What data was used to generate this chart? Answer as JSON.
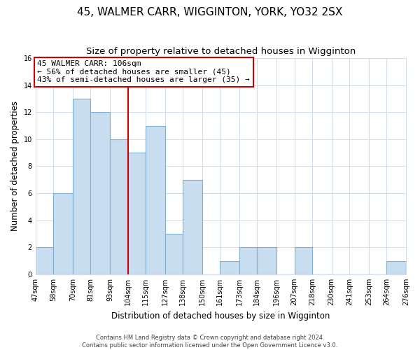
{
  "title": "45, WALMER CARR, WIGGINTON, YORK, YO32 2SX",
  "subtitle": "Size of property relative to detached houses in Wigginton",
  "xlabel": "Distribution of detached houses by size in Wigginton",
  "ylabel": "Number of detached properties",
  "bin_edges": [
    47,
    58,
    70,
    81,
    93,
    104,
    115,
    127,
    138,
    150,
    161,
    173,
    184,
    196,
    207,
    218,
    230,
    241,
    253,
    264,
    276
  ],
  "bin_labels": [
    "47sqm",
    "58sqm",
    "70sqm",
    "81sqm",
    "93sqm",
    "104sqm",
    "115sqm",
    "127sqm",
    "138sqm",
    "150sqm",
    "161sqm",
    "173sqm",
    "184sqm",
    "196sqm",
    "207sqm",
    "218sqm",
    "230sqm",
    "241sqm",
    "253sqm",
    "264sqm",
    "276sqm"
  ],
  "counts": [
    2,
    6,
    13,
    12,
    10,
    9,
    11,
    3,
    7,
    0,
    1,
    2,
    2,
    0,
    2,
    0,
    0,
    0,
    0,
    1
  ],
  "bar_color": "#c8ddef",
  "bar_edge_color": "#7fb0d0",
  "reference_line_x": 104,
  "reference_line_color": "#cc0000",
  "annotation_line1": "45 WALMER CARR: 106sqm",
  "annotation_line2": "← 56% of detached houses are smaller (45)",
  "annotation_line3": "43% of semi-detached houses are larger (35) →",
  "annotation_box_edge_color": "#cc0000",
  "ylim": [
    0,
    16
  ],
  "yticks": [
    0,
    2,
    4,
    6,
    8,
    10,
    12,
    14,
    16
  ],
  "footer_text": "Contains HM Land Registry data © Crown copyright and database right 2024.\nContains public sector information licensed under the Open Government Licence v3.0.",
  "background_color": "#ffffff",
  "grid_color": "#d0dce8",
  "title_fontsize": 11,
  "subtitle_fontsize": 9.5,
  "axis_label_fontsize": 8.5,
  "tick_fontsize": 7,
  "annotation_fontsize": 8,
  "footer_fontsize": 6
}
